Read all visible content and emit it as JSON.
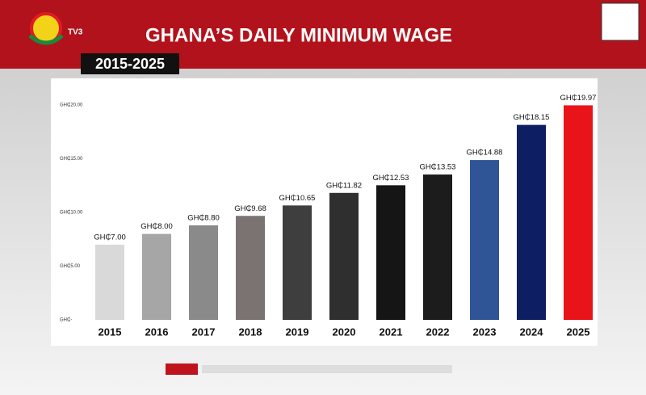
{
  "logo": "TV3",
  "chart_data": {
    "type": "bar",
    "title": "GHANA’S DAILY MINIMUM WAGE",
    "subtitle": "2015-2025",
    "categories": [
      "2015",
      "2016",
      "2017",
      "2018",
      "2019",
      "2020",
      "2021",
      "2022",
      "2023",
      "2024",
      "2025"
    ],
    "values": [
      7.0,
      8.0,
      8.8,
      9.68,
      10.65,
      11.82,
      12.53,
      13.53,
      14.88,
      18.15,
      19.97
    ],
    "value_labels": [
      "GH₵7.00",
      "GH₵8.00",
      "GH₵8.80",
      "GH₵9.68",
      "GH₵10.65",
      "GH₵11.82",
      "GH₵12.53",
      "GH₵13.53",
      "GH₵14.88",
      "GH₵18.15",
      "GH₵19.97"
    ],
    "colors": [
      "#d9d9d9",
      "#a6a6a6",
      "#8a8a8a",
      "#7a7372",
      "#3e3e3e",
      "#2f2f2f",
      "#151515",
      "#1c1c1c",
      "#2f5597",
      "#0d1f62",
      "#e8141a"
    ],
    "ylim": [
      0,
      20
    ],
    "yticks": [
      {
        "value": 0,
        "label": "GH₵-"
      },
      {
        "value": 5,
        "label": "GH₵5.00"
      },
      {
        "value": 10,
        "label": "GH₵10.00"
      },
      {
        "value": 15,
        "label": "GH₵15.00"
      },
      {
        "value": 20,
        "label": "GH₵20.00"
      }
    ],
    "grid": false
  }
}
